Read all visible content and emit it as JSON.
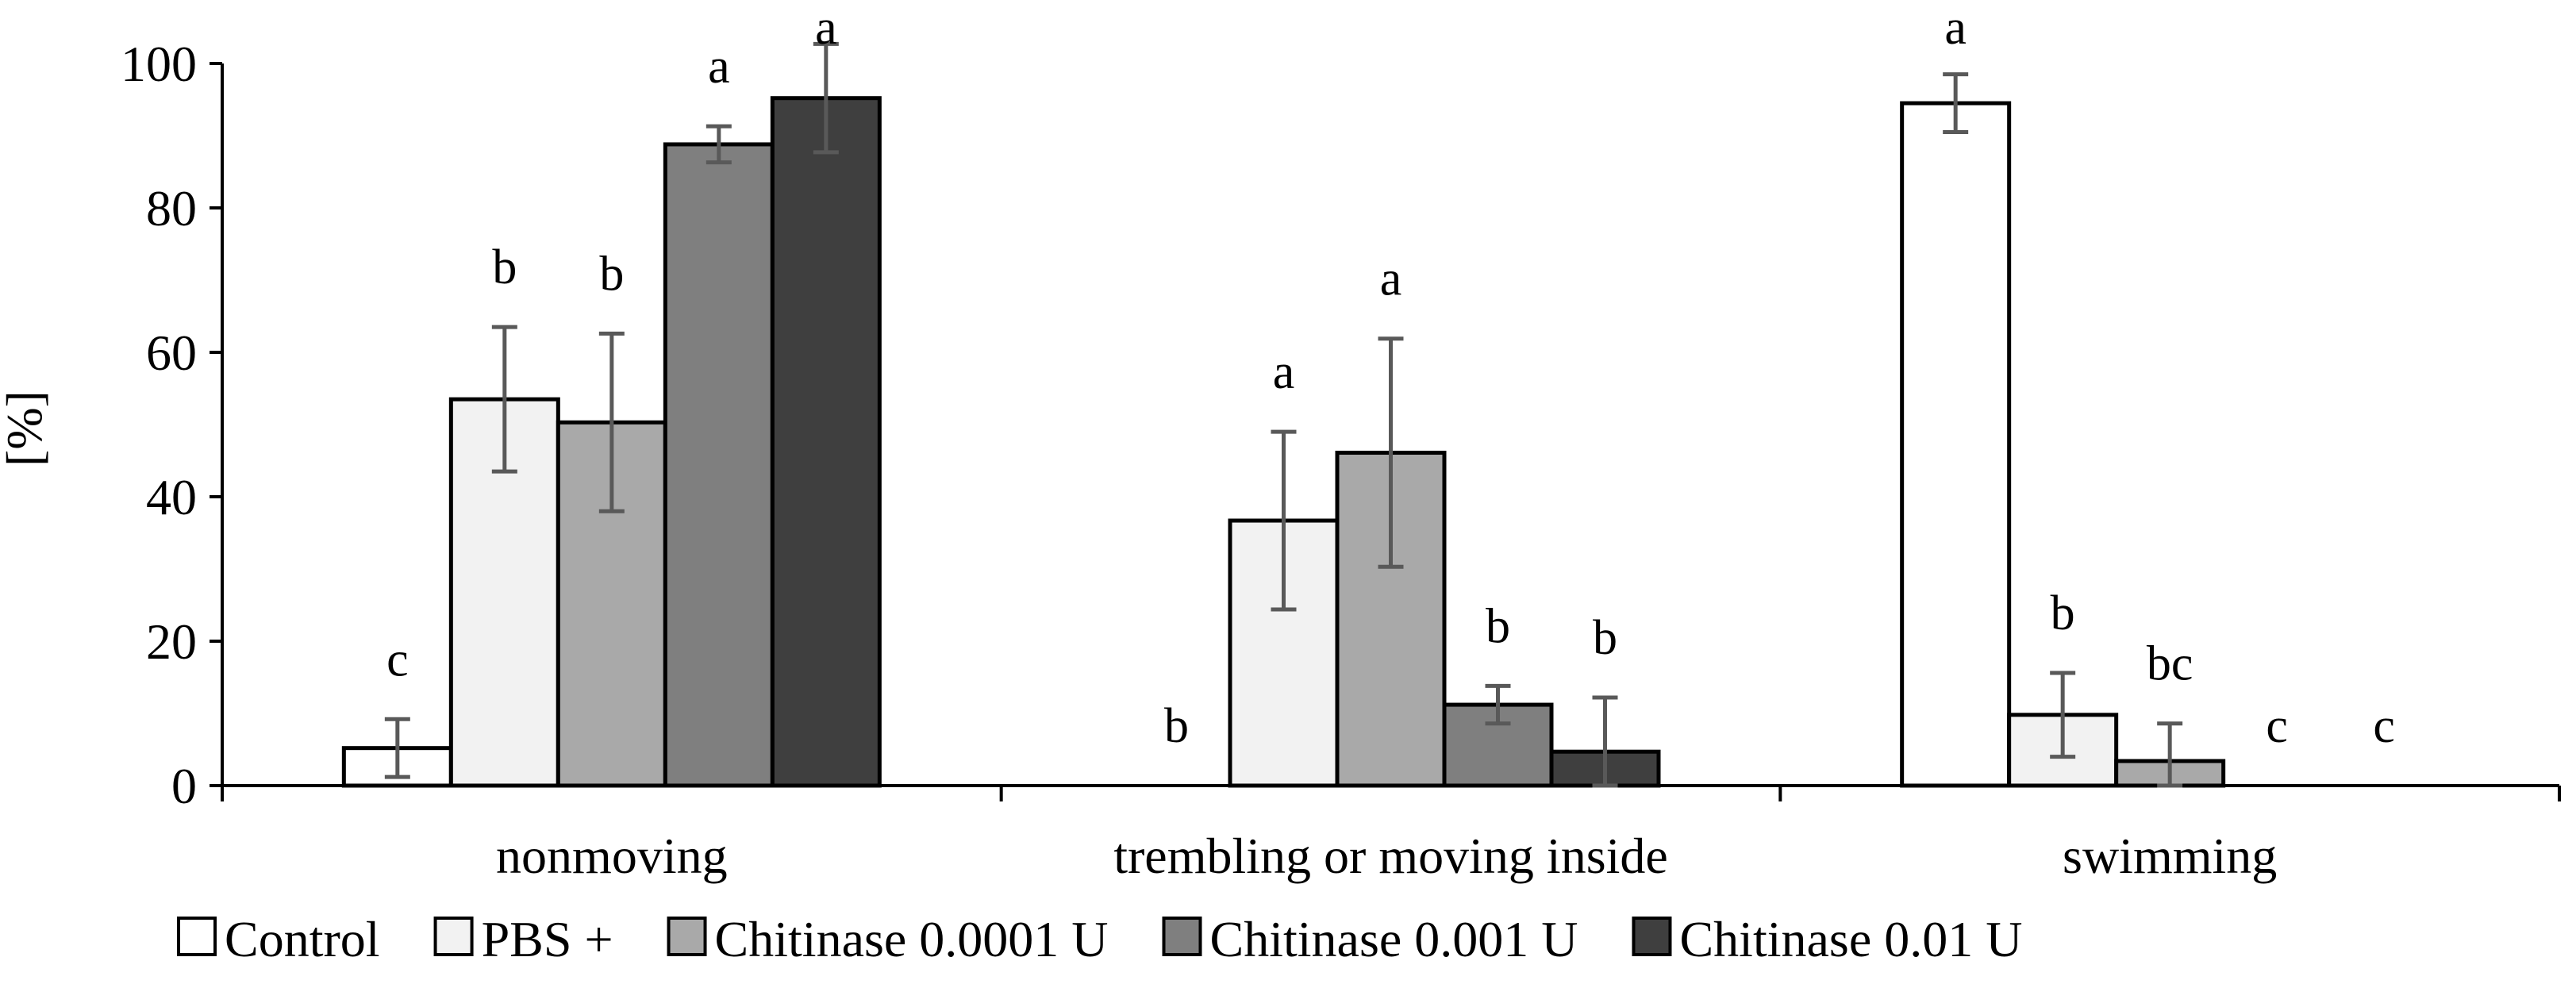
{
  "chart_data": {
    "type": "bar",
    "title": "",
    "xlabel": "",
    "ylabel": "[%]",
    "ylim": [
      0,
      100
    ],
    "yticks": [
      0,
      20,
      40,
      60,
      80,
      100
    ],
    "grid": false,
    "legend_position": "bottom",
    "categories": [
      "nonmoving",
      "trembling or moving inside",
      "swimming"
    ],
    "series": [
      {
        "name": "Control",
        "color": "#ffffff",
        "values": [
          5.2,
          0,
          94.5
        ],
        "errors": [
          4,
          0,
          4
        ],
        "letters": [
          "c",
          "b",
          "a"
        ]
      },
      {
        "name": "PBS +",
        "color": "#f2f2f2",
        "values": [
          53.5,
          36.7,
          9.8
        ],
        "errors": [
          10,
          12.3,
          5.8
        ],
        "letters": [
          "b",
          "a",
          "b"
        ]
      },
      {
        "name": "Chitinase 0.0001 U",
        "color": "#a9a9a9",
        "values": [
          50.3,
          46.1,
          3.4
        ],
        "errors": [
          12.3,
          15.8,
          5.2
        ],
        "letters": [
          "b",
          "a",
          "bc"
        ]
      },
      {
        "name": "Chitinase 0.001 U",
        "color": "#7f7f7f",
        "values": [
          88.8,
          11.2,
          0
        ],
        "errors": [
          2.5,
          2.6,
          0
        ],
        "letters": [
          "a",
          "b",
          "c"
        ]
      },
      {
        "name": "Chitinase  0.01 U",
        "color": "#3f3f3f",
        "values": [
          95.2,
          4.7,
          0
        ],
        "errors": [
          7.5,
          7.5,
          0
        ],
        "letters": [
          "a",
          "b",
          "c"
        ]
      }
    ]
  }
}
